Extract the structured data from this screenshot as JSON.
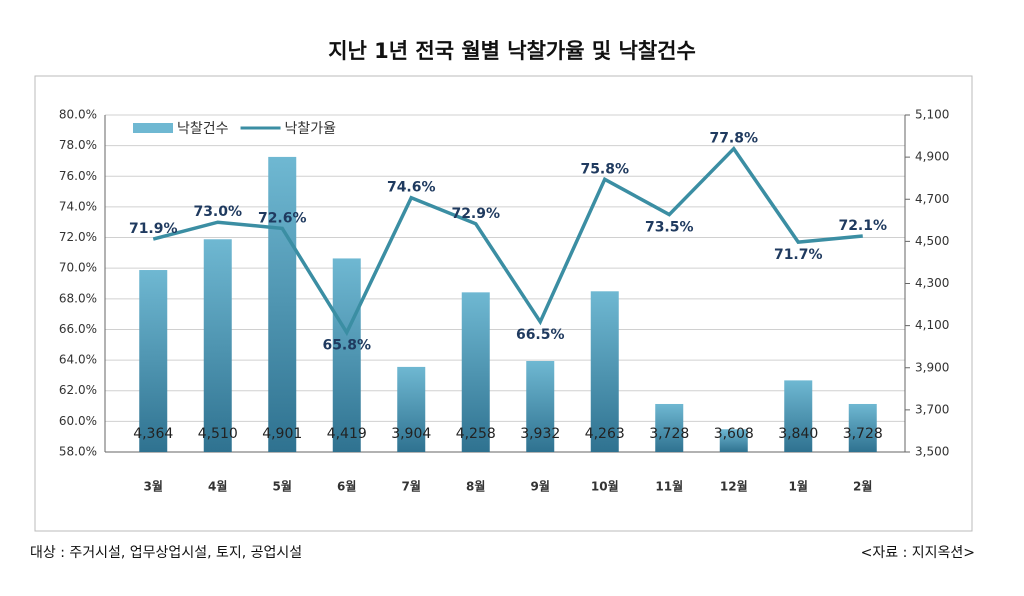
{
  "chart_data": {
    "type": "bar",
    "title": "지난 1년 전국 월별 낙찰가율 및 낙찰건수",
    "categories": [
      "3월",
      "4월",
      "5월",
      "6월",
      "7월",
      "8월",
      "9월",
      "10월",
      "11월",
      "12월",
      "1월",
      "2월"
    ],
    "series": [
      {
        "name": "낙찰건수",
        "type": "bar",
        "axis": "y2",
        "color": "#6fb8d2",
        "values": [
          4364,
          4510,
          4901,
          4419,
          3904,
          4258,
          3932,
          4263,
          3728,
          3608,
          3840,
          3728
        ],
        "value_labels": [
          "4,364",
          "4,510",
          "4,901",
          "4,419",
          "3,904",
          "4,258",
          "3,932",
          "4,263",
          "3,728",
          "3,608",
          "3,840",
          "3,728"
        ]
      },
      {
        "name": "낙찰가율",
        "type": "line",
        "color": "#3b8ea3",
        "values": [
          71.9,
          73.0,
          72.6,
          65.8,
          74.6,
          72.9,
          66.5,
          75.8,
          73.5,
          77.8,
          71.7,
          72.1
        ],
        "value_labels": [
          "71.9%",
          "73.0%",
          "72.6%",
          "65.8%",
          "74.6%",
          "72.9%",
          "66.5%",
          "75.8%",
          "73.5%",
          "77.8%",
          "71.7%",
          "72.1%"
        ]
      }
    ],
    "ylim": [
      58,
      80
    ],
    "yticks": [
      {
        "value": 58,
        "label": "58.0%"
      },
      {
        "value": 60,
        "label": "60.0%"
      },
      {
        "value": 62,
        "label": "62.0%"
      },
      {
        "value": 64,
        "label": "64.0%"
      },
      {
        "value": 66,
        "label": "66.0%"
      },
      {
        "value": 68,
        "label": "68.0%"
      },
      {
        "value": 70,
        "label": "70.0%"
      },
      {
        "value": 72,
        "label": "72.0%"
      },
      {
        "value": 74,
        "label": "74.0%"
      },
      {
        "value": 76,
        "label": "76.0%"
      },
      {
        "value": 78,
        "label": "78.0%"
      },
      {
        "value": 80,
        "label": "80.0%"
      }
    ],
    "y2lim": [
      3500,
      5100
    ],
    "y2ticks": [
      {
        "value": 3500,
        "label": "3,500"
      },
      {
        "value": 3700,
        "label": "3,700"
      },
      {
        "value": 3900,
        "label": "3,900"
      },
      {
        "value": 4100,
        "label": "4,100"
      },
      {
        "value": 4300,
        "label": "4,300"
      },
      {
        "value": 4500,
        "label": "4,500"
      },
      {
        "value": 4700,
        "label": "4,700"
      },
      {
        "value": 4900,
        "label": "4,900"
      },
      {
        "value": 5100,
        "label": "5,100"
      }
    ],
    "grid": true,
    "legend": "upper left",
    "note": "대상 : 주거시설, 업무상업시설, 토지, 공업시설",
    "source": "<자료 : 지지옥션>"
  }
}
